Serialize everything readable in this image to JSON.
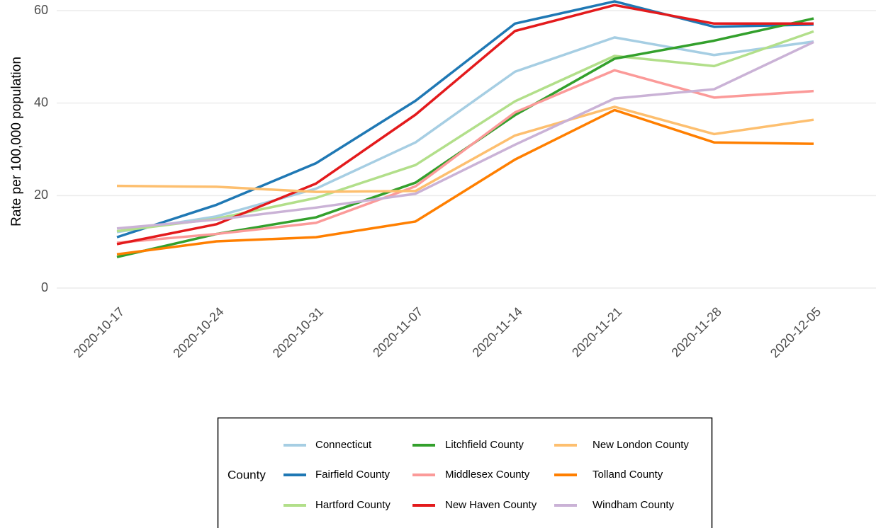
{
  "chart_data": {
    "type": "line",
    "y_label": "Rate per 100,000 population",
    "legend_title": "County",
    "legend_position": "bottom",
    "grid": true,
    "categories": [
      "2020-10-17",
      "2020-10-24",
      "2020-10-31",
      "2020-11-07",
      "2020-11-14",
      "2020-11-21",
      "2020-11-28",
      "2020-12-05"
    ],
    "ylim": [
      -3.1,
      65.1
    ],
    "yticks": [
      0,
      20,
      40,
      60
    ],
    "series": [
      {
        "name": "Connecticut",
        "color": "#a6cee3",
        "values": [
          12.1,
          15.5,
          21.5,
          31.5,
          46.8,
          54.2,
          50.4,
          53.3
        ]
      },
      {
        "name": "Fairfield County",
        "color": "#1f78b4",
        "values": [
          11,
          18,
          27,
          40.5,
          57.2,
          62,
          56.5,
          57
        ]
      },
      {
        "name": "Hartford County",
        "color": "#b2df8a",
        "values": [
          12.3,
          15,
          19.5,
          26.6,
          40.4,
          50.2,
          48,
          55.5
        ]
      },
      {
        "name": "Litchfield County",
        "color": "#33a02c",
        "values": [
          6.7,
          11.7,
          15.3,
          22.8,
          37.4,
          49.6,
          53.5,
          58.3
        ]
      },
      {
        "name": "Middlesex County",
        "color": "#fb9a99",
        "values": [
          9.8,
          11.7,
          14.1,
          22,
          38,
          47.1,
          41.2,
          42.6
        ]
      },
      {
        "name": "New Haven County",
        "color": "#e31a1c",
        "values": [
          9.5,
          13.8,
          22.6,
          37.5,
          55.6,
          61.2,
          57.2,
          57.2
        ]
      },
      {
        "name": "New London County",
        "color": "#fdbf6f",
        "values": [
          22.1,
          21.9,
          20.8,
          21,
          33,
          39.2,
          33.3,
          36.4
        ]
      },
      {
        "name": "Tolland County",
        "color": "#ff7f00",
        "values": [
          7.3,
          10.1,
          11,
          14.4,
          27.8,
          38.5,
          31.5,
          31.2
        ]
      },
      {
        "name": "Windham County",
        "color": "#cab2d6",
        "values": [
          12.9,
          14.8,
          17.4,
          20.4,
          31,
          41,
          43,
          53.2
        ]
      }
    ]
  }
}
